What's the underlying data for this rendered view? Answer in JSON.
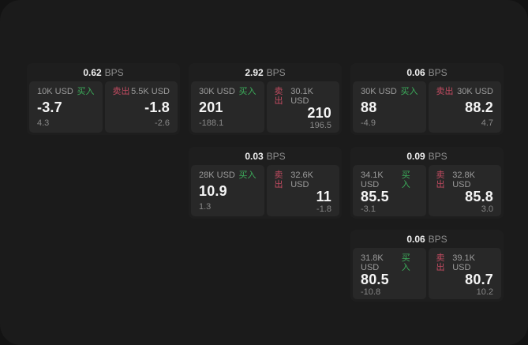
{
  "labels": {
    "bps_unit": "BPS",
    "buy": "买入",
    "sell": "卖出"
  },
  "colors": {
    "buy_green": "#3cae5b",
    "sell_red": "#c24b61",
    "panel_bg": "#1b1b1b",
    "card_bg": "#1e1e1e",
    "tile_bg": "#282828"
  },
  "cards": [
    {
      "bps": "0.62",
      "buy": {
        "amount": "10K USD",
        "price": "-3.7",
        "delta": "4.3"
      },
      "sell": {
        "amount": "5.5K USD",
        "price": "-1.8",
        "delta": "-2.6"
      }
    },
    {
      "bps": "2.92",
      "buy": {
        "amount": "30K USD",
        "price": "201",
        "delta": "-188.1"
      },
      "sell": {
        "amount": "30.1K USD",
        "price": "210",
        "delta": "196.5"
      }
    },
    {
      "bps": "0.06",
      "buy": {
        "amount": "30K USD",
        "price": "88",
        "delta": "-4.9"
      },
      "sell": {
        "amount": "30K USD",
        "price": "88.2",
        "delta": "4.7"
      }
    },
    {
      "bps": "0.03",
      "buy": {
        "amount": "28K USD",
        "price": "10.9",
        "delta": "1.3"
      },
      "sell": {
        "amount": "32.6K USD",
        "price": "11",
        "delta": "-1.8"
      }
    },
    {
      "bps": "0.09",
      "buy": {
        "amount": "34.1K USD",
        "price": "85.5",
        "delta": "-3.1"
      },
      "sell": {
        "amount": "32.8K USD",
        "price": "85.8",
        "delta": "3.0"
      }
    },
    {
      "bps": "0.06",
      "buy": {
        "amount": "31.8K USD",
        "price": "80.5",
        "delta": "-10.8"
      },
      "sell": {
        "amount": "39.1K USD",
        "price": "80.7",
        "delta": "10.2"
      }
    }
  ]
}
